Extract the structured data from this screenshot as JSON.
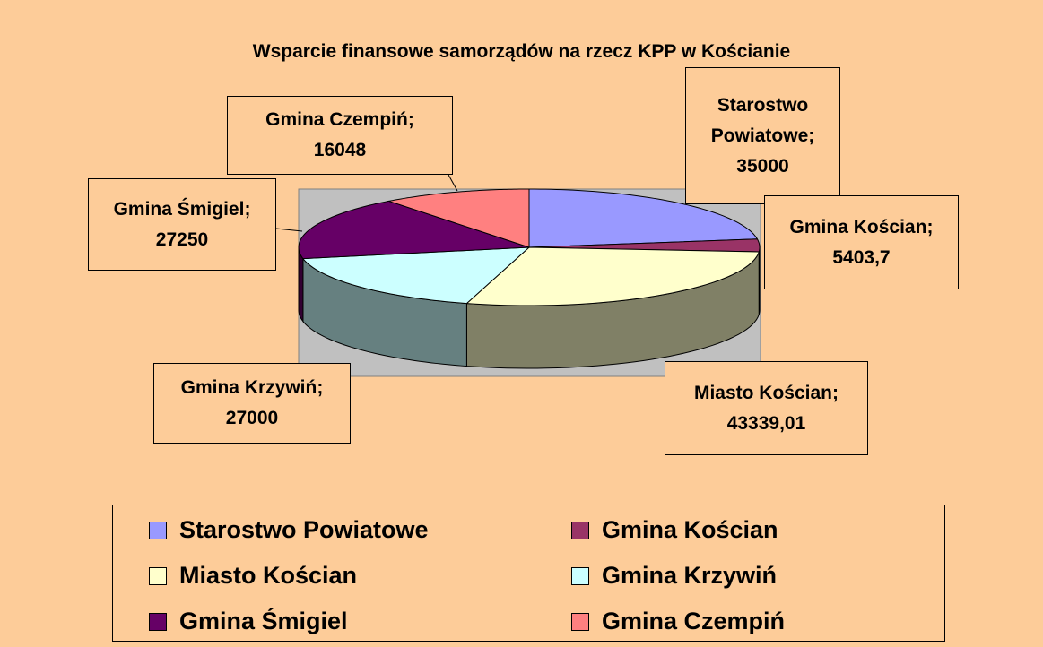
{
  "chart_data": {
    "type": "pie3d",
    "title": "Wsparcie finansowe samorządów na rzecz KPP w Kościanie",
    "categories": [
      "Starostwo Powiatowe",
      "Gmina Kościan",
      "Miasto Kościan",
      "Gmina Krzywiń",
      "Gmina Śmigiel",
      "Gmina Czempiń"
    ],
    "values": [
      35000,
      5403.7,
      43339.01,
      27000,
      27250,
      16048
    ],
    "value_labels": [
      "35000",
      "5403,7",
      "43339,01",
      "27000",
      "27250",
      "16048"
    ],
    "label_separator": ";",
    "colors": [
      "#9999ff",
      "#993366",
      "#ffffcc",
      "#ccffff",
      "#660066",
      "#ff8080"
    ],
    "legend": "bottom"
  }
}
